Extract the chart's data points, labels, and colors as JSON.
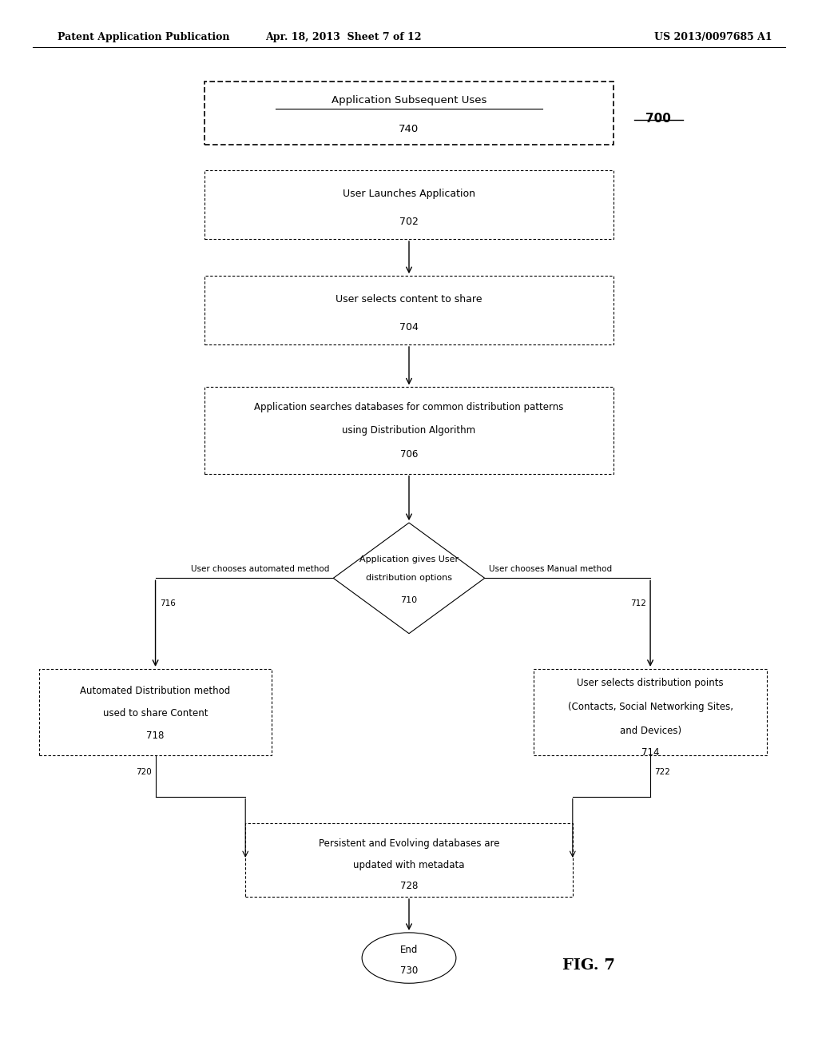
{
  "bg_color": "#ffffff",
  "header_left": "Patent Application Publication",
  "header_mid": "Apr. 18, 2013  Sheet 7 of 12",
  "header_right": "US 2013/0097685 A1",
  "fig_label": "FIG. 7",
  "diagram_ref": "700",
  "title_text": "Application Subsequent Uses",
  "title_num": "740",
  "box702_text": "User Launches Application",
  "box702_num": "702",
  "box704_text": "User selects content to share",
  "box704_num": "704",
  "box706_line1": "Application searches databases for common distribution patterns",
  "box706_line2": "using Distribution Algorithm",
  "box706_num": "706",
  "diamond710_line1": "Application gives User",
  "diamond710_line2": "distribution options",
  "diamond710_num": "710",
  "box718_line1": "Automated Distribution method",
  "box718_line2": "used to share Content",
  "box718_num": "718",
  "box714_line1": "User selects distribution points",
  "box714_line2": "(Contacts, Social Networking Sites,",
  "box714_line3": "and Devices)",
  "box714_num": "714",
  "box728_line1": "Persistent and Evolving databases are",
  "box728_line2": "updated with metadata",
  "box728_num": "728",
  "oval730_line1": "End",
  "oval730_num": "730",
  "label_auto": "User chooses automated method",
  "label_manual": "User chooses Manual method",
  "label_716": "716",
  "label_712": "712",
  "label_720": "720",
  "label_722": "722"
}
